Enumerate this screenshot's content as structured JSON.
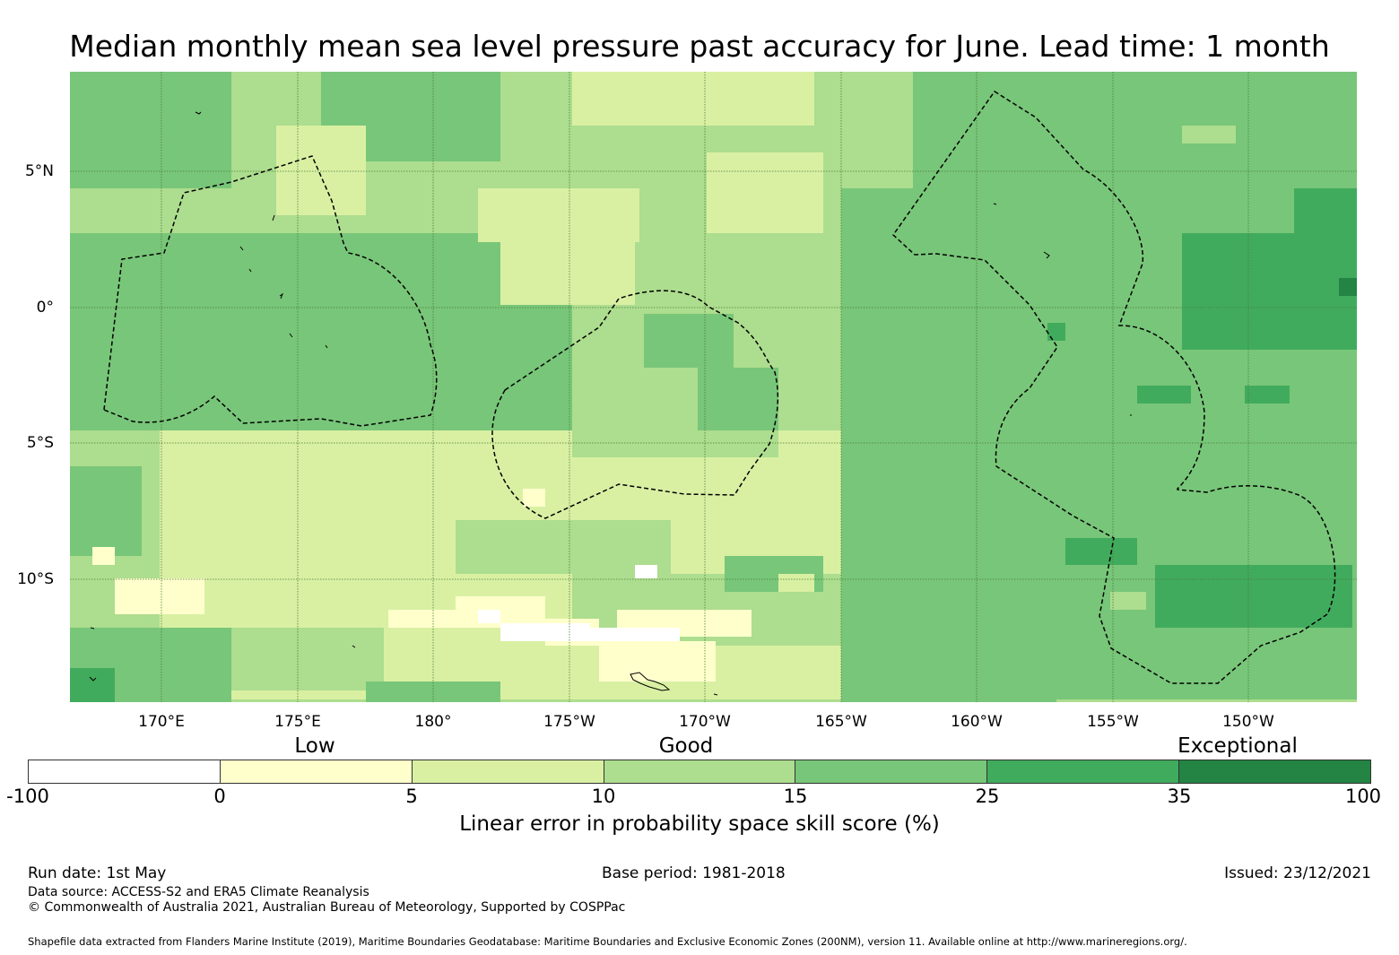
{
  "title": "Median monthly mean sea level pressure past accuracy for June. Lead time: 1 month",
  "map": {
    "lat_labels": [
      "5°N",
      "0°",
      "5°S",
      "10°S"
    ],
    "lon_labels": [
      "170°E",
      "175°E",
      "180°",
      "175°W",
      "170°W",
      "165°W",
      "160°W",
      "155°W",
      "150°W"
    ],
    "gridline_color": "#4a7a3a"
  },
  "legend": {
    "category_labels": [
      "Low",
      "Good",
      "Exceptional"
    ],
    "tick_labels": [
      "-100",
      "0",
      "5",
      "10",
      "15",
      "25",
      "35",
      "100"
    ],
    "colors": [
      "#ffffff",
      "#ffffcc",
      "#d9f0a3",
      "#addd8e",
      "#78c679",
      "#41ab5d",
      "#238443"
    ],
    "title": "Linear error in probability space skill score (%)"
  },
  "footer": {
    "run_date": "Run date: 1st May",
    "base_period": "Base period: 1981-2018",
    "issued": "Issued: 23/12/2021",
    "data_source": "Data source: ACCESS-S2 and ERA5 Climate Reanalysis",
    "copyright": "© Commonwealth of Australia 2021, Australian Bureau of Meteorology, Supported by COSPPac",
    "shapefile": "Shapefile data extracted from Flanders Marine Institute (2019), Maritime Boundaries Geodatabase: Maritime Boundaries and Exclusive Economic Zones (200NM), version 11. Available online at http://www.marineregions.org/."
  }
}
